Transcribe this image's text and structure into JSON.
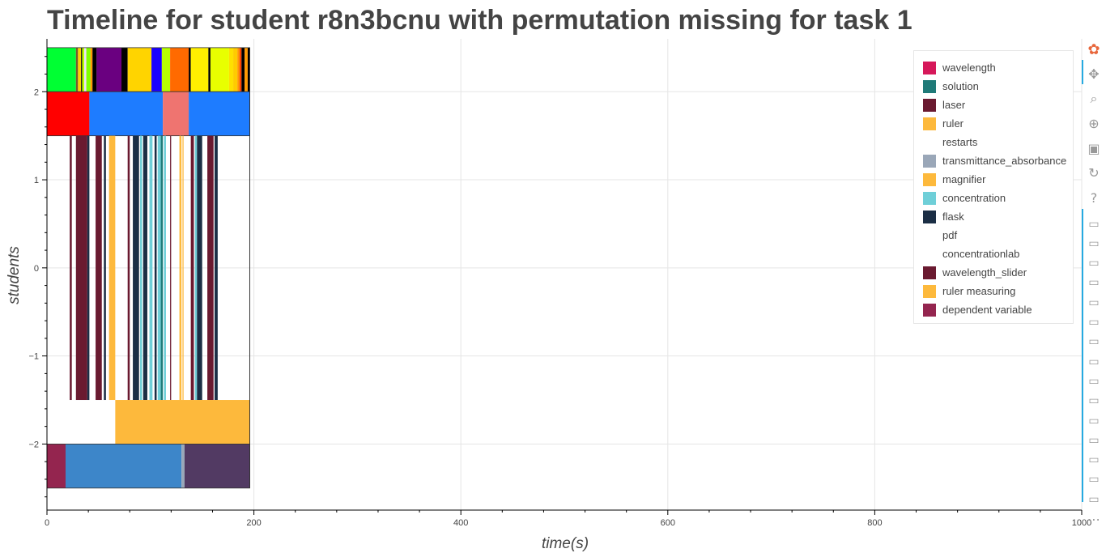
{
  "title": "Timeline for student r8n3bcnu with permutation missing for task 1",
  "chart_data": {
    "type": "bar",
    "orientation": "horizontal-timeline",
    "xlabel": "time(s)",
    "ylabel": "students",
    "xlim": [
      0,
      1000
    ],
    "ylim": [
      -2.75,
      2.6
    ],
    "x_ticks": [
      0,
      200,
      400,
      600,
      800,
      1000
    ],
    "y_ticks": [
      2,
      1,
      0,
      -1,
      -2
    ],
    "y_tick_labels": [
      "2",
      "1",
      "0",
      "−1",
      "−2"
    ],
    "grid": true,
    "legend_position": "top-right",
    "legend": [
      {
        "name": "wavelength",
        "color": "#d6185a"
      },
      {
        "name": "solution",
        "color": "#1f7a78"
      },
      {
        "name": "laser",
        "color": "#6a1a30"
      },
      {
        "name": "ruler",
        "color": "#fdb93c"
      },
      {
        "name": "restarts",
        "color": "#ffffff"
      },
      {
        "name": "transmittance_absorbance",
        "color": "#9aa7b8"
      },
      {
        "name": "magnifier",
        "color": "#fdb93c"
      },
      {
        "name": "concentration",
        "color": "#6fcfd8"
      },
      {
        "name": "flask",
        "color": "#1b2e45"
      },
      {
        "name": "pdf",
        "color": "#ffffff"
      },
      {
        "name": "concentrationlab",
        "color": "#ffffff"
      },
      {
        "name": "wavelength_slider",
        "color": "#6a1a30"
      },
      {
        "name": "ruler measuring",
        "color": "#fdb93c"
      },
      {
        "name": "dependent variable",
        "color": "#94254f"
      }
    ],
    "rows": [
      {
        "y0": 2.0,
        "y1": 2.5,
        "segments": [
          {
            "start": 0,
            "end": 28,
            "color": "#00ff33"
          },
          {
            "start": 28,
            "end": 30,
            "color": "#7a5a2a"
          },
          {
            "start": 30,
            "end": 33,
            "color": "#ffd400"
          },
          {
            "start": 33,
            "end": 34,
            "color": "#000000"
          },
          {
            "start": 34,
            "end": 36,
            "color": "#b8ff00"
          },
          {
            "start": 36,
            "end": 38,
            "color": "#f0e0ff"
          },
          {
            "start": 38,
            "end": 42,
            "color": "#80ff00"
          },
          {
            "start": 42,
            "end": 44,
            "color": "#ff9900"
          },
          {
            "start": 44,
            "end": 48,
            "color": "#000000"
          },
          {
            "start": 48,
            "end": 72,
            "color": "#6a0080"
          },
          {
            "start": 72,
            "end": 78,
            "color": "#000000"
          },
          {
            "start": 78,
            "end": 101,
            "color": "#ffd400"
          },
          {
            "start": 101,
            "end": 111,
            "color": "#1a00ff"
          },
          {
            "start": 111,
            "end": 119,
            "color": "#b8ff00"
          },
          {
            "start": 119,
            "end": 137,
            "color": "#ff6a00"
          },
          {
            "start": 137,
            "end": 139,
            "color": "#000000"
          },
          {
            "start": 139,
            "end": 156,
            "color": "#ffef00"
          },
          {
            "start": 156,
            "end": 158,
            "color": "#000000"
          },
          {
            "start": 158,
            "end": 176,
            "color": "#e8ff00"
          },
          {
            "start": 176,
            "end": 180,
            "color": "#ffe000"
          },
          {
            "start": 180,
            "end": 184,
            "color": "#ffcc00"
          },
          {
            "start": 184,
            "end": 186,
            "color": "#ff9a00"
          },
          {
            "start": 186,
            "end": 188,
            "color": "#ff4400"
          },
          {
            "start": 188,
            "end": 191,
            "color": "#000000"
          },
          {
            "start": 191,
            "end": 194,
            "color": "#ff9900"
          },
          {
            "start": 194,
            "end": 196,
            "color": "#000000"
          }
        ]
      },
      {
        "y0": 1.5,
        "y1": 2.0,
        "segments": [
          {
            "start": 0,
            "end": 41,
            "color": "#ff0000"
          },
          {
            "start": 41,
            "end": 112,
            "color": "#1e7cff"
          },
          {
            "start": 112,
            "end": 137,
            "color": "#ef7470"
          },
          {
            "start": 137,
            "end": 196,
            "color": "#1e7cff"
          }
        ]
      },
      {
        "y0": -1.5,
        "y1": 1.5,
        "segments": [
          {
            "start": 22,
            "end": 24,
            "color": "#6a1a30"
          },
          {
            "start": 28,
            "end": 39,
            "color": "#6a1a30"
          },
          {
            "start": 39,
            "end": 41,
            "color": "#1b2e45"
          },
          {
            "start": 47,
            "end": 53,
            "color": "#6a1a30"
          },
          {
            "start": 55,
            "end": 57,
            "color": "#1b2e45"
          },
          {
            "start": 60,
            "end": 66,
            "color": "#fdb93c"
          },
          {
            "start": 78,
            "end": 80,
            "color": "#6a1a30"
          },
          {
            "start": 83,
            "end": 89,
            "color": "#1b2e45"
          },
          {
            "start": 90,
            "end": 92,
            "color": "#6fcfd8"
          },
          {
            "start": 93,
            "end": 97,
            "color": "#1b2e45"
          },
          {
            "start": 99,
            "end": 102,
            "color": "#6fcfd8"
          },
          {
            "start": 104,
            "end": 106,
            "color": "#1b2e45"
          },
          {
            "start": 107,
            "end": 110,
            "color": "#6fcfd8"
          },
          {
            "start": 110,
            "end": 112,
            "color": "#1f7a78"
          },
          {
            "start": 113,
            "end": 115,
            "color": "#6fcfd8"
          },
          {
            "start": 119,
            "end": 120,
            "color": "#6a1a30"
          },
          {
            "start": 128,
            "end": 130,
            "color": "#fdb93c"
          },
          {
            "start": 131,
            "end": 132,
            "color": "#fdb93c"
          },
          {
            "start": 139,
            "end": 142,
            "color": "#6a1a30"
          },
          {
            "start": 143,
            "end": 145,
            "color": "#6fcfd8"
          },
          {
            "start": 145,
            "end": 150,
            "color": "#1b2e45"
          },
          {
            "start": 155,
            "end": 161,
            "color": "#6a1a30"
          },
          {
            "start": 162,
            "end": 165,
            "color": "#1b2e45"
          }
        ]
      },
      {
        "y0": -2.0,
        "y1": -1.5,
        "segments": [
          {
            "start": 66,
            "end": 196,
            "color": "#fdb93c"
          }
        ]
      },
      {
        "y0": -2.5,
        "y1": -2.0,
        "segments": [
          {
            "start": 0,
            "end": 18,
            "color": "#94254f"
          },
          {
            "start": 18,
            "end": 130,
            "color": "#3d86c9"
          },
          {
            "start": 130,
            "end": 133,
            "color": "#9aa7b8"
          },
          {
            "start": 133,
            "end": 196,
            "color": "#523a63"
          }
        ]
      }
    ]
  },
  "toolbar": [
    {
      "name": "bokeh-logo-icon",
      "glyph": "✿",
      "interactable": false
    },
    {
      "name": "pan-tool-icon",
      "glyph": "✥",
      "interactable": true
    },
    {
      "name": "box-zoom-tool-icon",
      "glyph": "⌕",
      "interactable": true
    },
    {
      "name": "wheel-zoom-tool-icon",
      "glyph": "⊕",
      "interactable": true
    },
    {
      "name": "save-tool-icon",
      "glyph": "▣",
      "interactable": true
    },
    {
      "name": "reset-tool-icon",
      "glyph": "↻",
      "interactable": true
    },
    {
      "name": "help-tool-icon",
      "glyph": "?",
      "interactable": true
    },
    {
      "name": "hover-tool-icon",
      "glyph": "▭",
      "interactable": true,
      "repeat": 15
    },
    {
      "name": "more-tools-icon",
      "glyph": "⋯",
      "interactable": true
    }
  ]
}
